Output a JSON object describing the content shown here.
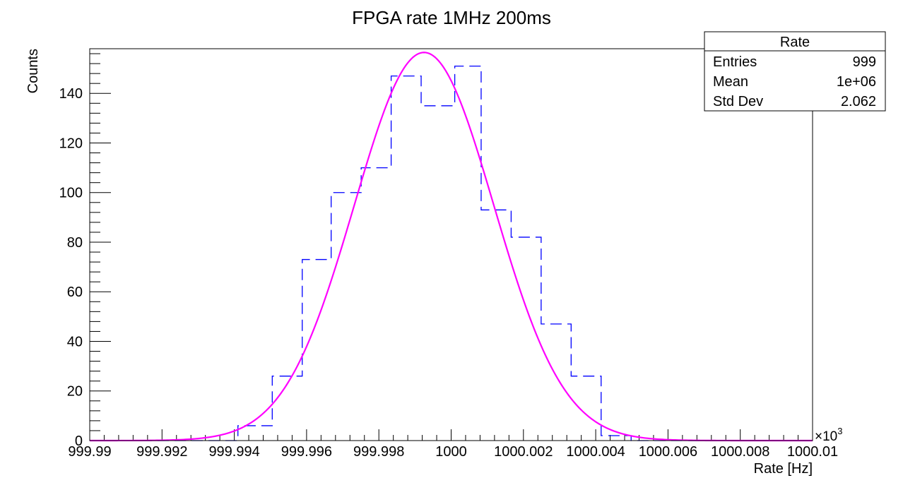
{
  "chart_data": {
    "type": "bar",
    "title": "FPGA rate 1MHz 200ms",
    "xlabel": "Rate [Hz]",
    "ylabel": "Counts",
    "x_multiplier_label": "×10",
    "x_multiplier_exp": "3",
    "xlim": [
      999.99,
      1000.01
    ],
    "ylim": [
      0,
      158
    ],
    "x_ticks": [
      {
        "v": 999.99,
        "label": "999.99"
      },
      {
        "v": 999.992,
        "label": "999.992"
      },
      {
        "v": 999.994,
        "label": "999.994"
      },
      {
        "v": 999.996,
        "label": "999.996"
      },
      {
        "v": 999.998,
        "label": "999.998"
      },
      {
        "v": 1000.0,
        "label": "1000"
      },
      {
        "v": 1000.002,
        "label": "1000.002"
      },
      {
        "v": 1000.004,
        "label": "1000.004"
      },
      {
        "v": 1000.006,
        "label": "1000.006"
      },
      {
        "v": 1000.008,
        "label": "1000.008"
      },
      {
        "v": 1000.01,
        "label": "1000.01"
      }
    ],
    "y_ticks": [
      {
        "v": 0,
        "label": "0"
      },
      {
        "v": 20,
        "label": "20"
      },
      {
        "v": 40,
        "label": "40"
      },
      {
        "v": 60,
        "label": "60"
      },
      {
        "v": 80,
        "label": "80"
      },
      {
        "v": 100,
        "label": "100"
      },
      {
        "v": 120,
        "label": "120"
      },
      {
        "v": 140,
        "label": "140"
      }
    ],
    "bin_edges": [
      999.9941,
      999.99505,
      999.99588,
      999.99668,
      999.99751,
      999.99834,
      999.99917,
      1000.0001,
      1000.00083,
      1000.00166,
      1000.00249,
      1000.00332,
      1000.00415,
      1000.00498
    ],
    "bin_counts": [
      6,
      26,
      73,
      100,
      110,
      147,
      135,
      151,
      93,
      82,
      47,
      26,
      2
    ],
    "histogram_color": "#0000ff",
    "fit": {
      "function": "gaussian",
      "amplitude": 156.5,
      "mean": 999.99925,
      "sigma": 0.00193,
      "color": "#ff00ff"
    },
    "stats_box": {
      "title": "Rate",
      "rows": [
        {
          "label": "Entries",
          "value": "999"
        },
        {
          "label": "Mean",
          "value": "1e+06"
        },
        {
          "label": "Std Dev",
          "value": "2.062"
        }
      ]
    }
  }
}
